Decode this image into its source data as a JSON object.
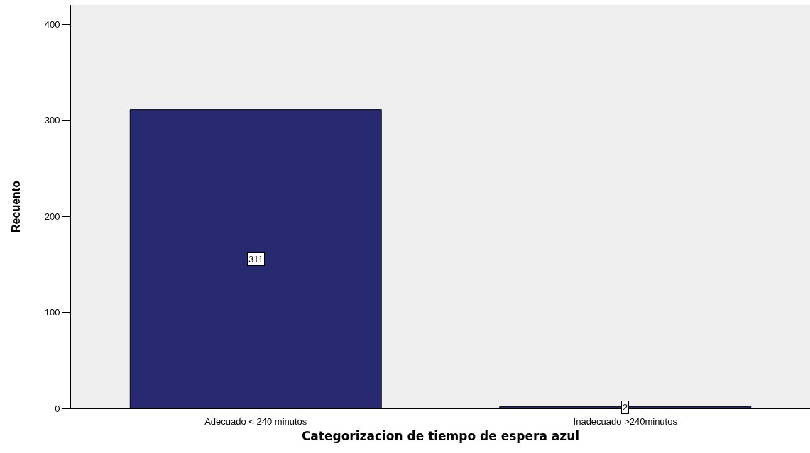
{
  "chart_data": {
    "type": "bar",
    "xlabel": "Categorizacion de tiempo de espera azul",
    "ylabel": "Recuento",
    "categories": [
      "Adecuado < 240 minutos",
      "Inadecuado >240minutos"
    ],
    "values": [
      311,
      2
    ],
    "color": "#272a70",
    "data_labels": true,
    "ylim": [
      0,
      420
    ],
    "yticks": [
      0,
      100,
      200,
      300,
      400
    ],
    "grid": false
  }
}
